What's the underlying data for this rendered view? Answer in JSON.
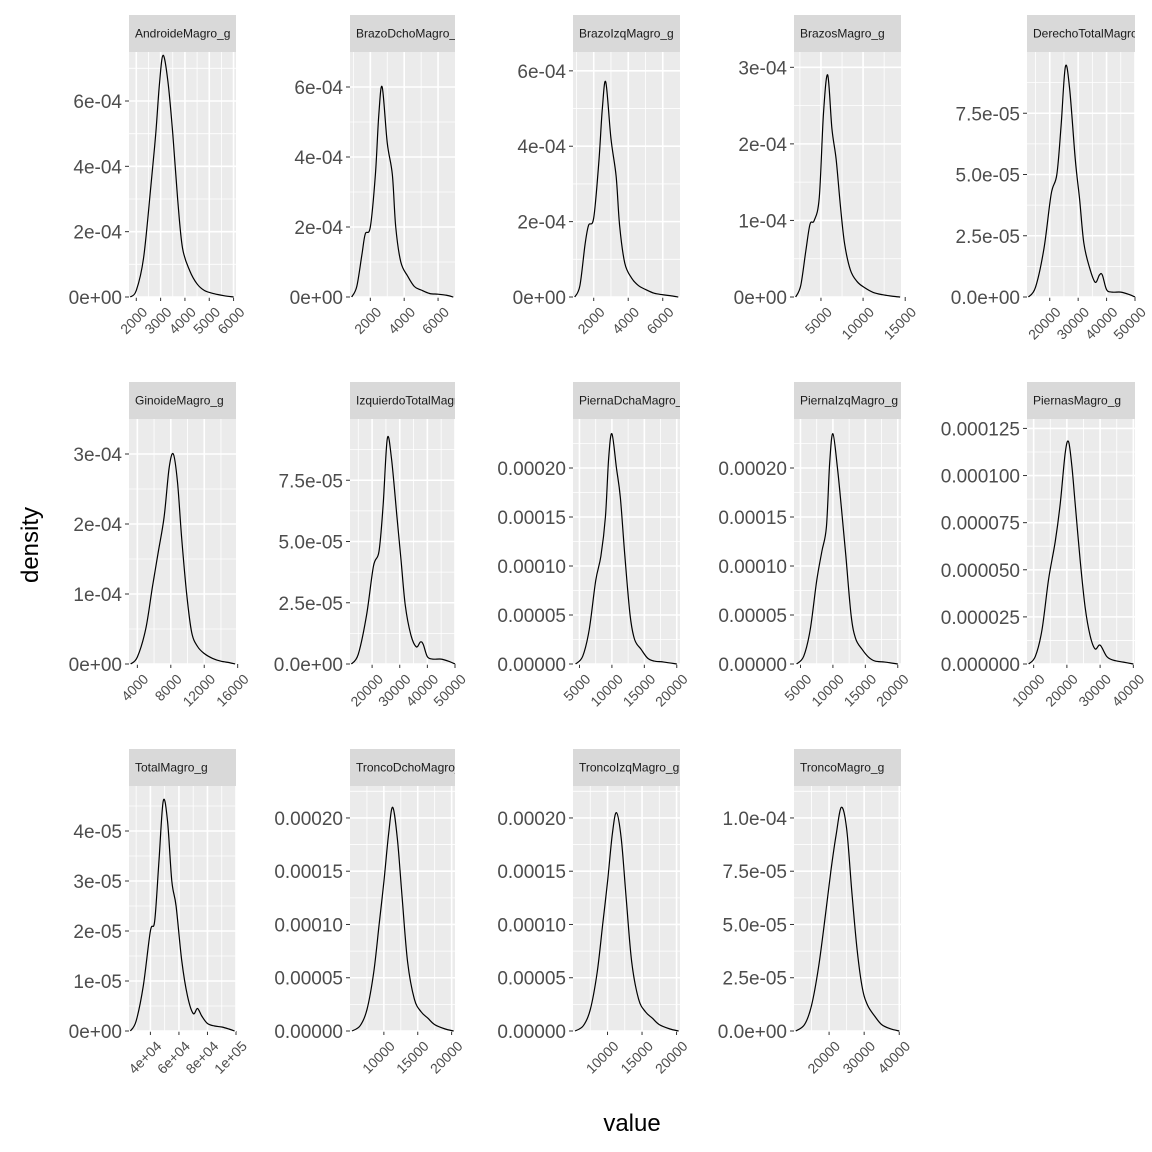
{
  "chart_data": {
    "type": "area",
    "layout": "facet_wrap",
    "xlabel": "value",
    "ylabel": "density",
    "colors": {
      "panel_bg": "#ebebeb",
      "grid": "#ffffff",
      "strip_bg": "#d9d9d9",
      "line": "#000000",
      "tick_text": "#4d4d4d"
    },
    "panels": [
      {
        "strip": "AndroideMagro_g",
        "xlim": [
          1700,
          6100
        ],
        "ylim": [
          0,
          0.00075
        ],
        "xticks": [
          2000,
          3000,
          4000,
          5000,
          6000
        ],
        "xtick_labels": [
          "2000",
          "3000",
          "4000",
          "5000",
          "6000"
        ],
        "yticks": [
          0,
          0.0002,
          0.0004,
          0.0006
        ],
        "ytick_labels": [
          "0e+00",
          "2e-04",
          "4e-04",
          "6e-04"
        ],
        "x": [
          1750,
          2000,
          2300,
          2600,
          2800,
          2950,
          3100,
          3300,
          3500,
          3700,
          3900,
          4200,
          4500,
          4800,
          5200,
          5600,
          6000
        ],
        "y": [
          0,
          2e-05,
          0.00012,
          0.00034,
          0.0005,
          0.00065,
          0.00074,
          0.00066,
          0.0005,
          0.0003,
          0.00015,
          8e-05,
          4e-05,
          2e-05,
          1e-05,
          4e-06,
          0
        ]
      },
      {
        "strip": "BrazoDchoMagro_g",
        "xlim": [
          800,
          7000
        ],
        "ylim": [
          0,
          0.0007
        ],
        "xticks": [
          2000,
          4000,
          6000
        ],
        "xtick_labels": [
          "2000",
          "4000",
          "6000"
        ],
        "yticks": [
          0,
          0.0002,
          0.0004,
          0.0006
        ],
        "ytick_labels": [
          "0e+00",
          "2e-04",
          "4e-04",
          "6e-04"
        ],
        "x": [
          900,
          1200,
          1500,
          1700,
          2000,
          2300,
          2500,
          2700,
          3000,
          3300,
          3500,
          3800,
          4200,
          4600,
          5000,
          5500,
          6000,
          6500,
          6900
        ],
        "y": [
          0,
          3e-05,
          0.00012,
          0.00018,
          0.0002,
          0.00035,
          0.00052,
          0.0006,
          0.00044,
          0.00035,
          0.0002,
          0.0001,
          6e-05,
          3e-05,
          2e-05,
          1e-05,
          8e-06,
          5e-06,
          0
        ]
      },
      {
        "strip": "BrazoIzqMagro_g",
        "xlim": [
          800,
          7000
        ],
        "ylim": [
          0,
          0.00065
        ],
        "xticks": [
          2000,
          4000,
          6000
        ],
        "xtick_labels": [
          "2000",
          "4000",
          "6000"
        ],
        "yticks": [
          0,
          0.0002,
          0.0004,
          0.0006
        ],
        "ytick_labels": [
          "0e+00",
          "2e-04",
          "4e-04",
          "6e-04"
        ],
        "x": [
          900,
          1200,
          1500,
          1700,
          2000,
          2300,
          2500,
          2700,
          3000,
          3300,
          3500,
          3800,
          4200,
          4600,
          5000,
          5500,
          6000,
          6500,
          6900
        ],
        "y": [
          0,
          3e-05,
          0.00014,
          0.00019,
          0.00021,
          0.00036,
          0.0005,
          0.00057,
          0.00042,
          0.00032,
          0.00019,
          9e-05,
          5e-05,
          3e-05,
          2e-05,
          1e-05,
          6e-06,
          3e-06,
          0
        ]
      },
      {
        "strip": "BrazosMagro_g",
        "xlim": [
          1800,
          14500
        ],
        "ylim": [
          0,
          0.00032
        ],
        "xticks": [
          5000,
          10000,
          15000
        ],
        "xtick_labels": [
          "5000",
          "10000",
          "15000"
        ],
        "yticks": [
          0,
          0.0001,
          0.0002,
          0.0003
        ],
        "ytick_labels": [
          "0e+00",
          "1e-04",
          "2e-04",
          "3e-04"
        ],
        "x": [
          2000,
          2600,
          3200,
          3700,
          4200,
          4800,
          5300,
          5800,
          6300,
          6800,
          7300,
          7800,
          8500,
          9300,
          10200,
          11200,
          12300,
          13500,
          14400
        ],
        "y": [
          0,
          1.5e-05,
          6e-05,
          9.5e-05,
          0.0001,
          0.00013,
          0.00024,
          0.00029,
          0.00022,
          0.00018,
          0.00012,
          7e-05,
          3.5e-05,
          2e-05,
          1.2e-05,
          6e-06,
          3e-06,
          1e-06,
          0
        ]
      },
      {
        "strip": "DerechoTotalMagro_g",
        "xlim": [
          12000,
          50000
        ],
        "ylim": [
          0,
          0.0001
        ],
        "xticks": [
          20000,
          30000,
          40000,
          50000
        ],
        "xtick_labels": [
          "20000",
          "30000",
          "40000",
          "50000"
        ],
        "yticks": [
          0,
          2.5e-05,
          5e-05,
          7.5e-05
        ],
        "ytick_labels": [
          "0.0e+00",
          "2.5e-05",
          "5.0e-05",
          "7.5e-05"
        ],
        "x": [
          12500,
          15000,
          18000,
          20500,
          22500,
          24000,
          25500,
          27000,
          29000,
          30500,
          32000,
          34000,
          36000,
          37500,
          38500,
          40000,
          42000,
          45000,
          48000,
          50000
        ],
        "y": [
          0,
          4e-06,
          2e-05,
          4.2e-05,
          5e-05,
          7e-05,
          9.4e-05,
          8.5e-05,
          5.6e-05,
          4e-05,
          2.2e-05,
          1.2e-05,
          6e-06,
          9e-06,
          9e-06,
          3e-06,
          2e-06,
          2e-06,
          1e-06,
          0
        ]
      },
      {
        "strip": "GinoideMagro_g",
        "xlim": [
          3000,
          15800
        ],
        "ylim": [
          0,
          0.00035
        ],
        "xticks": [
          4000,
          8000,
          12000,
          16000
        ],
        "xtick_labels": [
          "4000",
          "8000",
          "12000",
          "16000"
        ],
        "yticks": [
          0,
          0.0001,
          0.0002,
          0.0003
        ],
        "ytick_labels": [
          "0e+00",
          "1e-04",
          "2e-04",
          "3e-04"
        ],
        "x": [
          3200,
          4000,
          5000,
          5800,
          6500,
          7200,
          7800,
          8300,
          8800,
          9300,
          9900,
          10500,
          11200,
          12000,
          13000,
          14000,
          15000,
          15700
        ],
        "y": [
          0,
          1e-05,
          5e-05,
          0.00011,
          0.00016,
          0.00021,
          0.00028,
          0.0003,
          0.00026,
          0.00018,
          0.0001,
          4.5e-05,
          2.5e-05,
          1.5e-05,
          8e-06,
          4e-06,
          2e-06,
          0
        ]
      },
      {
        "strip": "IzquierdoTotalMagro_g",
        "xlim": [
          12000,
          50000
        ],
        "ylim": [
          0,
          0.0001
        ],
        "xticks": [
          20000,
          30000,
          40000,
          50000
        ],
        "xtick_labels": [
          "20000",
          "30000",
          "40000",
          "50000"
        ],
        "yticks": [
          0,
          2.5e-05,
          5e-05,
          7.5e-05
        ],
        "ytick_labels": [
          "0.0e+00",
          "2.5e-05",
          "5.0e-05",
          "7.5e-05"
        ],
        "x": [
          12500,
          15000,
          18000,
          20500,
          22500,
          24000,
          25500,
          27000,
          29000,
          30500,
          32000,
          34000,
          36000,
          37500,
          38500,
          40000,
          42000,
          45000,
          48000,
          50000
        ],
        "y": [
          0,
          4e-06,
          2e-05,
          4e-05,
          4.6e-05,
          6.5e-05,
          9.2e-05,
          8.4e-05,
          6e-05,
          4.2e-05,
          2.4e-05,
          1.2e-05,
          7e-06,
          9e-06,
          8e-06,
          3e-06,
          2e-06,
          2e-06,
          1e-06,
          0
        ]
      },
      {
        "strip": "PiernaDchaMagro_g",
        "xlim": [
          4000,
          20500
        ],
        "ylim": [
          0,
          0.00025
        ],
        "xticks": [
          5000,
          10000,
          15000,
          20000
        ],
        "xtick_labels": [
          "5000",
          "10000",
          "15000",
          "20000"
        ],
        "yticks": [
          0,
          5e-05,
          0.0001,
          0.00015,
          0.0002
        ],
        "ytick_labels": [
          "0.00000",
          "0.00005",
          "0.00010",
          "0.00015",
          "0.00020"
        ],
        "x": [
          4400,
          5500,
          6500,
          7500,
          8300,
          9000,
          9500,
          10000,
          10700,
          11300,
          12000,
          12800,
          13500,
          14500,
          15500,
          16500,
          18000,
          20000
        ],
        "y": [
          0,
          8e-06,
          3.5e-05,
          8.5e-05,
          0.00011,
          0.00015,
          0.00021,
          0.000235,
          0.0002,
          0.00017,
          0.00011,
          5e-05,
          2.5e-05,
          1.5e-05,
          6e-06,
          3e-06,
          2e-06,
          0
        ]
      },
      {
        "strip": "PiernaIzqMagro_g",
        "xlim": [
          4000,
          20500
        ],
        "ylim": [
          0,
          0.00025
        ],
        "xticks": [
          5000,
          10000,
          15000,
          20000
        ],
        "xtick_labels": [
          "5000",
          "10000",
          "15000",
          "20000"
        ],
        "yticks": [
          0,
          5e-05,
          0.0001,
          0.00015,
          0.0002
        ],
        "ytick_labels": [
          "0.00000",
          "0.00005",
          "0.00010",
          "0.00015",
          "0.00020"
        ],
        "x": [
          4400,
          5500,
          6500,
          7500,
          8300,
          9000,
          9500,
          10000,
          10700,
          11300,
          12000,
          12800,
          13500,
          14500,
          15500,
          16500,
          18000,
          20000
        ],
        "y": [
          0,
          8e-06,
          3.5e-05,
          8.5e-05,
          0.000115,
          0.00014,
          0.000205,
          0.000235,
          0.0002,
          0.00016,
          0.00011,
          5e-05,
          2.6e-05,
          1.5e-05,
          7e-06,
          3e-06,
          2e-06,
          0
        ]
      },
      {
        "strip": "PiernasMagro_g",
        "xlim": [
          8000,
          40500
        ],
        "ylim": [
          0,
          0.00013
        ],
        "xticks": [
          10000,
          20000,
          30000,
          40000
        ],
        "xtick_labels": [
          "10000",
          "20000",
          "30000",
          "40000"
        ],
        "yticks": [
          0,
          2.5e-05,
          5e-05,
          7.5e-05,
          0.0001,
          0.000125
        ],
        "ytick_labels": [
          "0.000000",
          "0.000025",
          "0.000050",
          "0.000075",
          "0.000100",
          "0.000125"
        ],
        "x": [
          8500,
          10500,
          12500,
          14500,
          16500,
          18000,
          19500,
          20500,
          21500,
          22500,
          24000,
          25500,
          27000,
          28500,
          30000,
          32000,
          34000,
          37000,
          40000
        ],
        "y": [
          0,
          4e-06,
          1.8e-05,
          4.5e-05,
          6.5e-05,
          8.5e-05,
          0.000112,
          0.000118,
          0.000105,
          8.5e-05,
          5.5e-05,
          3e-05,
          1.5e-05,
          8e-06,
          1e-05,
          4e-06,
          2e-06,
          1e-06,
          0
        ]
      },
      {
        "strip": "TotalMagro_g",
        "xlim": [
          25000,
          100000
        ],
        "ylim": [
          0,
          4.9e-05
        ],
        "xticks": [
          40000,
          60000,
          80000,
          100000
        ],
        "xtick_labels": [
          "4e+04",
          "6e+04",
          "8e+04",
          "1e+05"
        ],
        "yticks": [
          0,
          1e-05,
          2e-05,
          3e-05,
          4e-05
        ],
        "ytick_labels": [
          "0e+00",
          "1e-05",
          "2e-05",
          "3e-05",
          "4e-05"
        ],
        "x": [
          26000,
          30000,
          35000,
          40000,
          43000,
          46000,
          49000,
          52000,
          55000,
          58000,
          62000,
          66000,
          70000,
          73000,
          76000,
          80000,
          85000,
          90000,
          95000,
          99000
        ],
        "y": [
          0,
          2e-06,
          9e-06,
          2e-05,
          2.2e-05,
          3.4e-05,
          4.6e-05,
          4.2e-05,
          3e-05,
          2.5e-05,
          1.4e-05,
          7e-06,
          3.5e-06,
          4.5e-06,
          3e-06,
          1.5e-06,
          1e-06,
          8e-07,
          4e-07,
          0
        ]
      },
      {
        "strip": "TroncoDchoMagro_g",
        "xlim": [
          5000,
          20500
        ],
        "ylim": [
          0,
          0.00023
        ],
        "xticks": [
          10000,
          15000,
          20000
        ],
        "xtick_labels": [
          "10000",
          "15000",
          "20000"
        ],
        "yticks": [
          0,
          5e-05,
          0.0001,
          0.00015,
          0.0002
        ],
        "ytick_labels": [
          "0.00000",
          "0.00005",
          "0.00010",
          "0.00015",
          "0.00020"
        ],
        "x": [
          5300,
          6500,
          7500,
          8500,
          9300,
          10000,
          10700,
          11300,
          12000,
          12700,
          13500,
          14500,
          15500,
          16500,
          17500,
          19000,
          20300
        ],
        "y": [
          0,
          5e-06,
          2e-05,
          5.5e-05,
          0.0001,
          0.00014,
          0.000185,
          0.00021,
          0.00018,
          0.000125,
          6.5e-05,
          3e-05,
          1.8e-05,
          1.2e-05,
          6e-06,
          2e-06,
          0
        ]
      },
      {
        "strip": "TroncoIzqMagro_g",
        "xlim": [
          5000,
          20500
        ],
        "ylim": [
          0,
          0.00023
        ],
        "xticks": [
          10000,
          15000,
          20000
        ],
        "xtick_labels": [
          "10000",
          "15000",
          "20000"
        ],
        "yticks": [
          0,
          5e-05,
          0.0001,
          0.00015,
          0.0002
        ],
        "ytick_labels": [
          "0.00000",
          "0.00005",
          "0.00010",
          "0.00015",
          "0.00020"
        ],
        "x": [
          5300,
          6500,
          7500,
          8500,
          9300,
          10000,
          10700,
          11300,
          12000,
          12700,
          13500,
          14500,
          15500,
          16500,
          17500,
          19000,
          20300
        ],
        "y": [
          0,
          5e-06,
          2e-05,
          5.5e-05,
          0.0001,
          0.00014,
          0.000185,
          0.000205,
          0.00018,
          0.000125,
          6.5e-05,
          3e-05,
          1.8e-05,
          1.2e-05,
          6e-06,
          2e-06,
          0
        ]
      },
      {
        "strip": "TroncoMagro_g",
        "xlim": [
          10000,
          40500
        ],
        "ylim": [
          0,
          0.000115
        ],
        "xticks": [
          20000,
          30000,
          40000
        ],
        "xtick_labels": [
          "20000",
          "30000",
          "40000"
        ],
        "yticks": [
          0,
          2.5e-05,
          5e-05,
          7.5e-05,
          0.0001
        ],
        "ytick_labels": [
          "0.0e+00",
          "2.5e-05",
          "5.0e-05",
          "7.5e-05",
          "1.0e-04"
        ],
        "x": [
          10500,
          13000,
          15000,
          17000,
          19000,
          20500,
          22000,
          23500,
          25000,
          26500,
          28000,
          29500,
          31000,
          33000,
          35000,
          37500,
          40000
        ],
        "y": [
          0,
          3e-06,
          1.2e-05,
          3e-05,
          5.5e-05,
          7.5e-05,
          9.2e-05,
          0.000105,
          9.5e-05,
          6.5e-05,
          3.8e-05,
          2e-05,
          1.2e-05,
          7e-06,
          3e-06,
          1e-06,
          0
        ]
      }
    ]
  }
}
